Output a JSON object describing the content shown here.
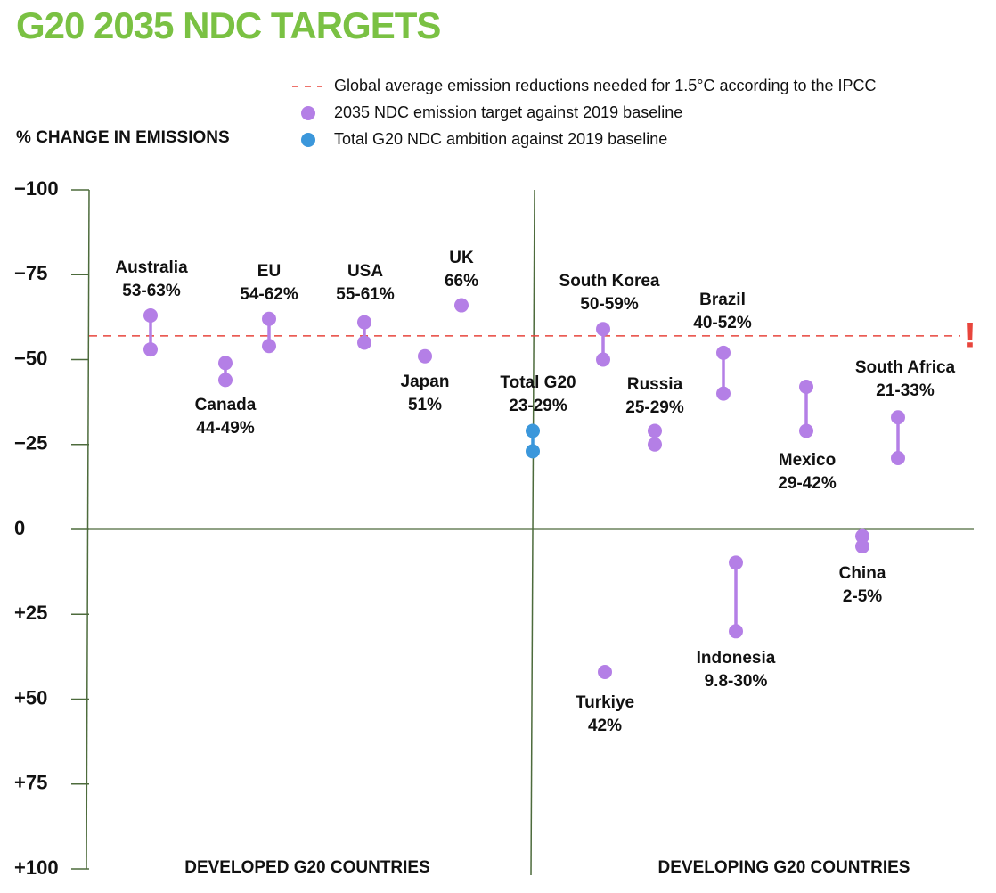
{
  "chart_data": {
    "type": "dumbbell",
    "title": "G20 2035 NDC TARGETS",
    "y_label": "% CHANGE IN EMISSIONS",
    "ylim": [
      -100,
      100
    ],
    "yticks": [
      {
        "value": -100,
        "label": "−100"
      },
      {
        "value": -75,
        "label": "−75"
      },
      {
        "value": -50,
        "label": "−50"
      },
      {
        "value": -25,
        "label": "−25"
      },
      0,
      {
        "value": 25,
        "label": "+25"
      },
      {
        "value": 50,
        "label": "+50"
      },
      {
        "value": 75,
        "label": "+75"
      },
      {
        "value": 100,
        "label": "+100"
      }
    ],
    "groups": [
      "DEVELOPED G20 COUNTRIES",
      "DEVELOPING G20 COUNTRIES"
    ],
    "reference_line": {
      "value": -57,
      "label": "Global average emission reductions needed for 1.5°C according to the IPCC",
      "color": "#e8453c",
      "marker": "!"
    },
    "series": [
      {
        "name": "2035 NDC emission target against 2019 baseline",
        "color": "#b47fe6",
        "points": [
          {
            "name": "Australia",
            "value_label": "53-63%",
            "values": [
              -63,
              -53
            ]
          },
          {
            "name": "Canada",
            "value_label": "44-49%",
            "values": [
              -49,
              -44
            ]
          },
          {
            "name": "EU",
            "value_label": "54-62%",
            "values": [
              -62,
              -54
            ]
          },
          {
            "name": "USA",
            "value_label": "55-61%",
            "values": [
              -61,
              -55
            ]
          },
          {
            "name": "Japan",
            "value_label": "51%",
            "values": [
              -51
            ]
          },
          {
            "name": "UK",
            "value_label": "66%",
            "values": [
              -66
            ]
          },
          {
            "name": "South Korea",
            "value_label": "50-59%",
            "values": [
              -59,
              -50
            ]
          },
          {
            "name": "Turkiye",
            "value_label": "42%",
            "values": [
              42
            ]
          },
          {
            "name": "Russia",
            "value_label": "25-29%",
            "values": [
              -29,
              -25
            ]
          },
          {
            "name": "Brazil",
            "value_label": "40-52%",
            "values": [
              -52,
              -40
            ]
          },
          {
            "name": "Indonesia",
            "value_label": "9.8-30%",
            "values": [
              9.8,
              30
            ]
          },
          {
            "name": "Mexico",
            "value_label": "29-42%",
            "values": [
              -42,
              -29
            ]
          },
          {
            "name": "China",
            "value_label": "2-5%",
            "values": [
              2,
              5
            ]
          },
          {
            "name": "South Africa",
            "value_label": "21-33%",
            "values": [
              -33,
              -21
            ]
          }
        ]
      },
      {
        "name": "Total G20 NDC ambition against 2019 baseline",
        "color": "#3b97db",
        "points": [
          {
            "name": "Total G20",
            "value_label": "23-29%",
            "values": [
              -29,
              -23
            ]
          }
        ]
      }
    ]
  }
}
